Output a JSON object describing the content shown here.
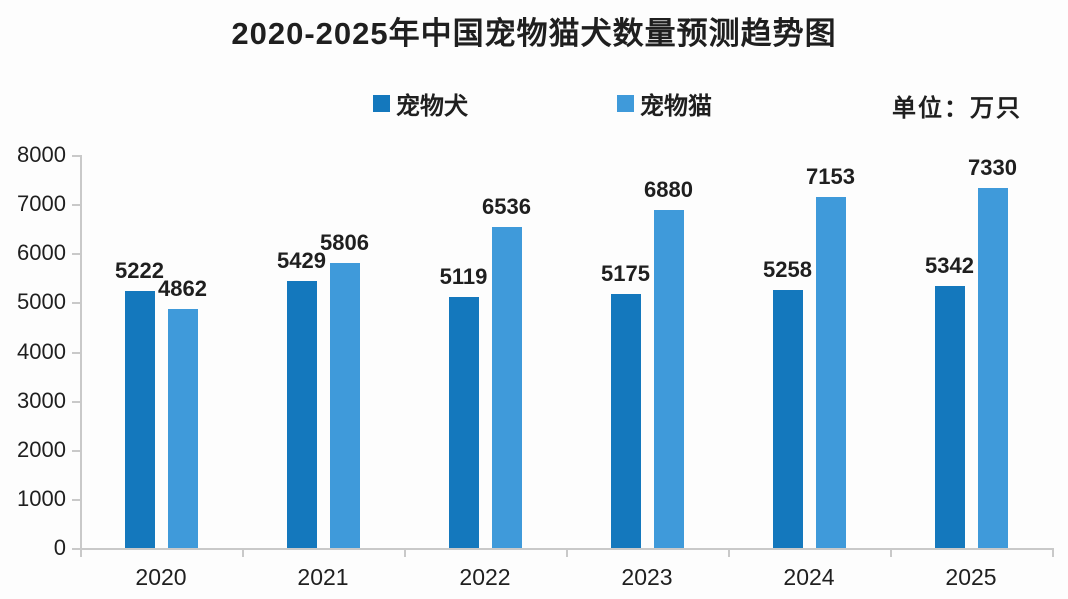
{
  "title": "2020-2025年中国宠物猫犬数量预测趋势图",
  "legend": {
    "dog_label": "宠物犬",
    "cat_label": "宠物猫",
    "unit_label": "单位：万只"
  },
  "colors": {
    "dog_bar": "#1478bd",
    "cat_bar": "#3f9ada",
    "axis": "#c9c9c9",
    "text": "#1f1f1f",
    "background": "#fdfdfd"
  },
  "chart_data": {
    "type": "bar",
    "title": "2020-2025年中国宠物猫犬数量预测趋势图",
    "unit": "万只",
    "categories": [
      "2020",
      "2021",
      "2022",
      "2023",
      "2024",
      "2025"
    ],
    "series": [
      {
        "name": "宠物犬",
        "color": "#1478bd",
        "values": [
          5222,
          5429,
          5119,
          5175,
          5258,
          5342
        ]
      },
      {
        "name": "宠物猫",
        "color": "#3f9ada",
        "values": [
          4862,
          5806,
          6536,
          6880,
          7153,
          7330
        ]
      }
    ],
    "ylim": [
      0,
      8000
    ],
    "ytick_step": 1000,
    "grid": false,
    "legend_position": "top",
    "value_labels": true
  }
}
